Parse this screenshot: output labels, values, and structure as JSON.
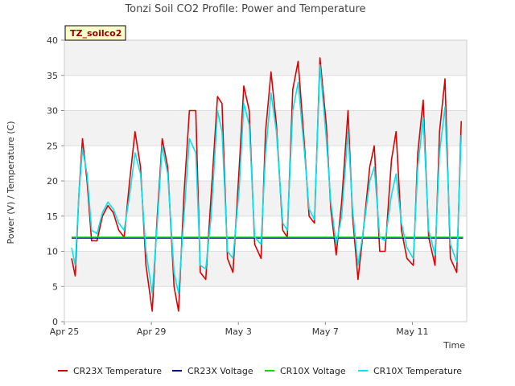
{
  "chart_data": {
    "type": "line",
    "title": "Tonzi Soil CO2 Profile: Power and Temperature",
    "site_label": "TZ_soilco2",
    "xlabel": "Time",
    "ylabel": "Power (V) / Temperature (C)",
    "ylim": [
      0,
      40
    ],
    "xlim": [
      "2025-04-25",
      "2025-05-13T12:00"
    ],
    "x_ticks": [
      "Apr 25",
      "Apr 29",
      "May 3",
      "May 7",
      "May 11"
    ],
    "x_tick_dates": [
      "2025-04-25",
      "2025-04-29",
      "2025-05-03",
      "2025-05-07",
      "2025-05-11"
    ],
    "y_ticks": [
      0,
      5,
      10,
      15,
      20,
      25,
      30,
      35,
      40
    ],
    "grid": true,
    "legend_position": "bottom",
    "series": [
      {
        "name": "CR23X Temperature",
        "color": "#dd0000",
        "x": [
          "2025-04-25T08:00",
          "2025-04-25T12:00",
          "2025-04-25T16:00",
          "2025-04-25T20:00",
          "2025-04-26T01:00",
          "2025-04-26T06:00",
          "2025-04-26T12:00",
          "2025-04-26T18:00",
          "2025-04-27T00:00",
          "2025-04-27T06:00",
          "2025-04-27T12:00",
          "2025-04-27T18:00",
          "2025-04-28T00:00",
          "2025-04-28T06:00",
          "2025-04-28T12:00",
          "2025-04-28T18:00",
          "2025-04-29T01:00",
          "2025-04-29T06:00",
          "2025-04-29T12:00",
          "2025-04-29T18:00",
          "2025-04-30T01:00",
          "2025-04-30T06:00",
          "2025-04-30T12:00",
          "2025-04-30T18:00",
          "2025-05-01T01:00",
          "2025-05-01T06:00",
          "2025-05-01T12:00",
          "2025-05-01T18:00",
          "2025-05-02T01:00",
          "2025-05-02T06:00",
          "2025-05-02T12:00",
          "2025-05-02T18:00",
          "2025-05-03T01:00",
          "2025-05-03T06:00",
          "2025-05-03T12:00",
          "2025-05-03T18:00",
          "2025-05-04T01:00",
          "2025-05-04T06:00",
          "2025-05-04T12:00",
          "2025-05-04T18:00",
          "2025-05-05T01:00",
          "2025-05-05T06:00",
          "2025-05-05T12:00",
          "2025-05-05T18:00",
          "2025-05-06T01:00",
          "2025-05-06T06:00",
          "2025-05-06T12:00",
          "2025-05-06T18:00",
          "2025-05-07T01:00",
          "2025-05-07T06:00",
          "2025-05-07T12:00",
          "2025-05-07T18:00",
          "2025-05-08T01:00",
          "2025-05-08T06:00",
          "2025-05-08T12:00",
          "2025-05-08T18:00",
          "2025-05-09T01:00",
          "2025-05-09T06:00",
          "2025-05-09T12:00",
          "2025-05-09T18:00",
          "2025-05-10T01:00",
          "2025-05-10T06:00",
          "2025-05-10T12:00",
          "2025-05-10T18:00",
          "2025-05-11T01:00",
          "2025-05-11T06:00",
          "2025-05-11T12:00",
          "2025-05-11T18:00",
          "2025-05-12T01:00",
          "2025-05-12T06:00",
          "2025-05-12T12:00",
          "2025-05-12T18:00",
          "2025-05-13T01:00",
          "2025-05-13T06:00"
        ],
        "y": [
          9.0,
          6.5,
          18.0,
          26.0,
          20.0,
          11.5,
          11.5,
          15.0,
          16.5,
          15.5,
          13.0,
          12.0,
          20.0,
          27.0,
          22.0,
          8.0,
          1.5,
          14.0,
          26.0,
          22.0,
          5.0,
          1.5,
          18.0,
          30.0,
          30.0,
          7.0,
          6.0,
          18.0,
          32.0,
          31.0,
          9.0,
          7.0,
          22.0,
          33.5,
          30.0,
          11.0,
          9.0,
          27.0,
          35.5,
          28.0,
          13.0,
          12.0,
          33.0,
          37.0,
          25.0,
          15.0,
          14.0,
          37.5,
          28.0,
          16.0,
          9.5,
          17.0,
          30.0,
          15.0,
          6.0,
          13.0,
          22.0,
          25.0,
          10.0,
          10.0,
          23.0,
          27.0,
          13.0,
          9.0,
          8.0,
          24.0,
          31.5,
          12.0,
          8.0,
          27.0,
          34.5,
          9.0,
          7.0,
          28.5
        ]
      },
      {
        "name": "CR23X Voltage",
        "color": "#00008b",
        "x": [
          "2025-04-25T08:00",
          "2025-05-13T08:00"
        ],
        "y": [
          11.9,
          11.9
        ]
      },
      {
        "name": "CR10X Voltage",
        "color": "#00dd00",
        "x": [
          "2025-04-25T08:00",
          "2025-05-13T08:00"
        ],
        "y": [
          12.0,
          12.0
        ]
      },
      {
        "name": "CR10X Temperature",
        "color": "#00e5ee",
        "x": [
          "2025-04-25T08:00",
          "2025-04-25T12:00",
          "2025-04-25T16:00",
          "2025-04-25T20:00",
          "2025-04-26T01:00",
          "2025-04-26T06:00",
          "2025-04-26T12:00",
          "2025-04-26T18:00",
          "2025-04-27T00:00",
          "2025-04-27T06:00",
          "2025-04-27T12:00",
          "2025-04-27T18:00",
          "2025-04-28T00:00",
          "2025-04-28T06:00",
          "2025-04-28T12:00",
          "2025-04-28T18:00",
          "2025-04-29T01:00",
          "2025-04-29T06:00",
          "2025-04-29T12:00",
          "2025-04-29T18:00",
          "2025-04-30T01:00",
          "2025-04-30T06:00",
          "2025-04-30T12:00",
          "2025-04-30T18:00",
          "2025-05-01T01:00",
          "2025-05-01T06:00",
          "2025-05-01T12:00",
          "2025-05-01T18:00",
          "2025-05-02T01:00",
          "2025-05-02T06:00",
          "2025-05-02T12:00",
          "2025-05-02T18:00",
          "2025-05-03T01:00",
          "2025-05-03T06:00",
          "2025-05-03T12:00",
          "2025-05-03T18:00",
          "2025-05-04T01:00",
          "2025-05-04T06:00",
          "2025-05-04T12:00",
          "2025-05-04T18:00",
          "2025-05-05T01:00",
          "2025-05-05T06:00",
          "2025-05-05T12:00",
          "2025-05-05T18:00",
          "2025-05-06T01:00",
          "2025-05-06T06:00",
          "2025-05-06T12:00",
          "2025-05-06T18:00",
          "2025-05-07T01:00",
          "2025-05-07T06:00",
          "2025-05-07T12:00",
          "2025-05-07T18:00",
          "2025-05-08T01:00",
          "2025-05-08T06:00",
          "2025-05-08T12:00",
          "2025-05-08T18:00",
          "2025-05-09T01:00",
          "2025-05-09T06:00",
          "2025-05-09T12:00",
          "2025-05-09T18:00",
          "2025-05-10T01:00",
          "2025-05-10T06:00",
          "2025-05-10T12:00",
          "2025-05-10T18:00",
          "2025-05-11T01:00",
          "2025-05-11T06:00",
          "2025-05-11T12:00",
          "2025-05-11T18:00",
          "2025-05-12T01:00",
          "2025-05-12T06:00",
          "2025-05-12T12:00",
          "2025-05-12T18:00",
          "2025-05-13T01:00",
          "2025-05-13T06:00"
        ],
        "y": [
          10.5,
          8.0,
          18.0,
          24.5,
          21.0,
          13.0,
          12.5,
          15.5,
          17.0,
          16.0,
          14.0,
          13.0,
          18.0,
          24.0,
          21.0,
          10.0,
          4.0,
          13.0,
          25.0,
          21.0,
          7.0,
          4.0,
          15.0,
          26.0,
          24.0,
          8.0,
          7.5,
          15.0,
          30.0,
          27.0,
          10.0,
          9.0,
          19.0,
          31.0,
          28.0,
          12.0,
          11.0,
          24.0,
          32.5,
          27.0,
          14.0,
          13.0,
          30.0,
          34.0,
          24.0,
          16.0,
          14.5,
          36.5,
          26.0,
          17.0,
          11.0,
          15.0,
          27.0,
          16.0,
          8.0,
          13.0,
          20.0,
          22.0,
          12.0,
          11.5,
          18.0,
          21.0,
          14.0,
          10.5,
          9.0,
          22.0,
          29.0,
          13.0,
          9.5,
          24.0,
          30.5,
          11.0,
          8.5,
          26.5
        ]
      }
    ]
  }
}
